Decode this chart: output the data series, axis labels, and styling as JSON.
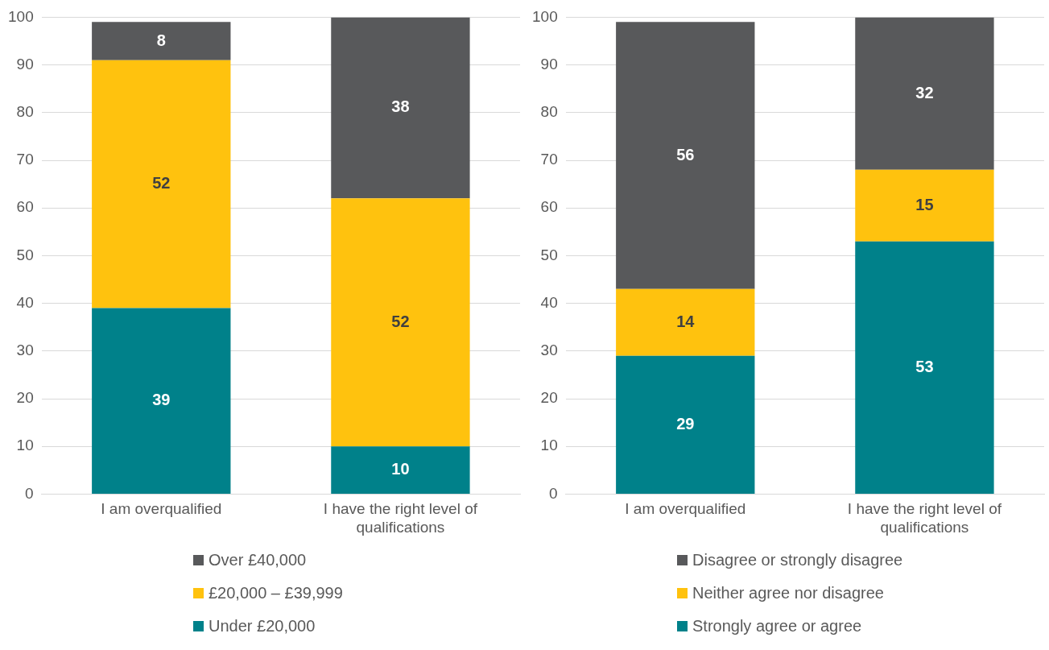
{
  "chart_data": [
    {
      "type": "bar",
      "stacked": true,
      "categories": [
        "I am overqualified",
        "I have the right level of qualifications"
      ],
      "series": [
        {
          "name": "Under £20,000",
          "color": "#00818a",
          "values": [
            39,
            10
          ]
        },
        {
          "name": "£20,000 – £39,999",
          "color": "#ffc20e",
          "values": [
            52,
            52
          ]
        },
        {
          "name": "Over £40,000",
          "color": "#58595b",
          "values": [
            8,
            38
          ]
        }
      ],
      "ylim": [
        0,
        100
      ],
      "yticks": [
        0,
        10,
        20,
        30,
        40,
        50,
        60,
        70,
        80,
        90,
        100
      ],
      "grid": "y",
      "legend": "bottom",
      "data_labels": true
    },
    {
      "type": "bar",
      "stacked": true,
      "categories": [
        "I am overqualified",
        "I have the right level of qualifications"
      ],
      "series": [
        {
          "name": "Strongly agree or agree",
          "color": "#00818a",
          "values": [
            29,
            53
          ]
        },
        {
          "name": "Neither agree nor disagree",
          "color": "#ffc20e",
          "values": [
            14,
            15
          ]
        },
        {
          "name": "Disagree or strongly disagree",
          "color": "#58595b",
          "values": [
            56,
            32
          ]
        }
      ],
      "ylim": [
        0,
        100
      ],
      "yticks": [
        0,
        10,
        20,
        30,
        40,
        50,
        60,
        70,
        80,
        90,
        100
      ],
      "grid": "y",
      "legend": "bottom",
      "data_labels": true
    }
  ]
}
